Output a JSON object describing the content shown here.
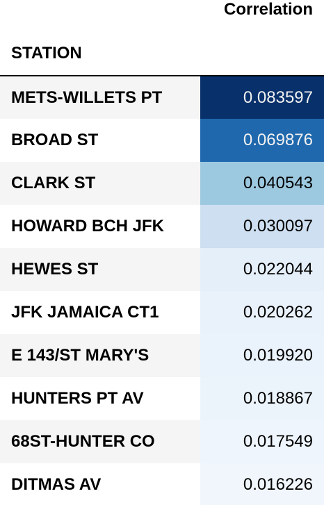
{
  "table": {
    "column_header": "Correlation",
    "index_header": "STATION",
    "rows": [
      {
        "station": "METS-WILLETS PT",
        "correlation": "0.083597",
        "bg": "#08306b",
        "fg": "#f1f1f1"
      },
      {
        "station": "BROAD ST",
        "correlation": "0.069876",
        "bg": "#1f68ad",
        "fg": "#f1f1f1"
      },
      {
        "station": "CLARK ST",
        "correlation": "0.040543",
        "bg": "#9dc9e0",
        "fg": "#000000"
      },
      {
        "station": "HOWARD BCH JFK",
        "correlation": "0.030097",
        "bg": "#cddff0",
        "fg": "#000000"
      },
      {
        "station": "HEWES ST",
        "correlation": "0.022044",
        "bg": "#e5eff9",
        "fg": "#000000"
      },
      {
        "station": "JFK JAMAICA CT1",
        "correlation": "0.020262",
        "bg": "#e9f1fa",
        "fg": "#000000"
      },
      {
        "station": "E 143/ST MARY'S",
        "correlation": "0.019920",
        "bg": "#eaf2fb",
        "fg": "#000000"
      },
      {
        "station": "HUNTERS PT AV",
        "correlation": "0.018867",
        "bg": "#ecf4fb",
        "fg": "#000000"
      },
      {
        "station": "68ST-HUNTER CO",
        "correlation": "0.017549",
        "bg": "#eef5fc",
        "fg": "#000000"
      },
      {
        "station": "DITMAS AV",
        "correlation": "0.016226",
        "bg": "#f1f6fd",
        "fg": "#000000"
      }
    ]
  }
}
